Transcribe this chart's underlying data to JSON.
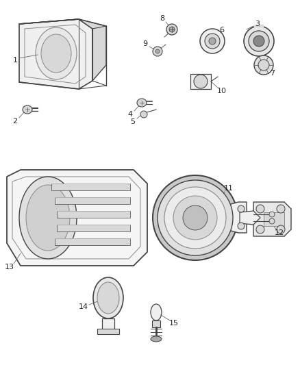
{
  "bg_color": "#ffffff",
  "lc": "#444444",
  "lc_light": "#888888",
  "fc_light": "#f0f0f0",
  "fc_mid": "#d8d8d8",
  "fc_dark": "#aaaaaa",
  "figsize": [
    4.38,
    5.33
  ],
  "dpi": 100,
  "label_fs": 7.5
}
